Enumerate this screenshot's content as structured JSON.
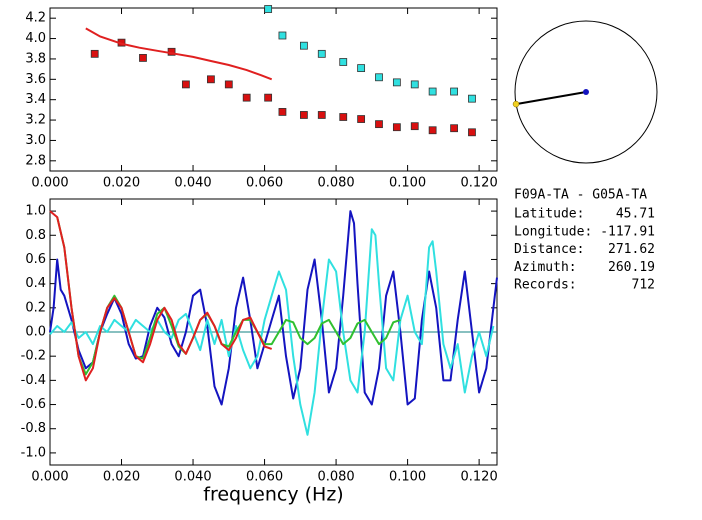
{
  "chart_data": [
    {
      "type": "scatter",
      "xlim": [
        0,
        0.125
      ],
      "ylim": [
        2.7,
        4.3
      ],
      "xticks": [
        {
          "value": 0,
          "label": "0.000"
        },
        {
          "value": 0.02,
          "label": "0.020"
        },
        {
          "value": 0.04,
          "label": "0.040"
        },
        {
          "value": 0.06,
          "label": "0.060"
        },
        {
          "value": 0.08,
          "label": "0.080"
        },
        {
          "value": 0.1,
          "label": "0.100"
        },
        {
          "value": 0.12,
          "label": "0.120"
        }
      ],
      "yticks": [
        {
          "value": 2.8,
          "label": "2.8"
        },
        {
          "value": 3.0,
          "label": "3.0"
        },
        {
          "value": 3.2,
          "label": "3.2"
        },
        {
          "value": 3.4,
          "label": "3.4"
        },
        {
          "value": 3.6,
          "label": "3.6"
        },
        {
          "value": 3.8,
          "label": "3.8"
        },
        {
          "value": 4.0,
          "label": "4.0"
        },
        {
          "value": 4.2,
          "label": "4.2"
        }
      ],
      "series": [
        {
          "style": "square",
          "color": "#d81010",
          "x": [
            0.0125,
            0.02,
            0.026,
            0.034,
            0.038,
            0.045,
            0.05,
            0.055,
            0.061,
            0.065,
            0.071,
            0.076,
            0.082,
            0.087,
            0.092,
            0.097,
            0.102,
            0.107,
            0.113,
            0.118
          ],
          "values": [
            3.85,
            3.96,
            3.81,
            3.87,
            3.55,
            3.6,
            3.55,
            3.42,
            3.42,
            3.28,
            3.25,
            3.25,
            3.23,
            3.21,
            3.16,
            3.13,
            3.14,
            3.1,
            3.12,
            3.08
          ]
        },
        {
          "style": "square",
          "color": "#30e0e0",
          "x": [
            0.061,
            0.065,
            0.071,
            0.076,
            0.082,
            0.087,
            0.092,
            0.097,
            0.102,
            0.107,
            0.113,
            0.118
          ],
          "values": [
            4.29,
            4.03,
            3.93,
            3.85,
            3.77,
            3.71,
            3.62,
            3.57,
            3.55,
            3.48,
            3.48,
            3.41
          ]
        },
        {
          "style": "line",
          "color": "#e02020",
          "x": [
            0.01,
            0.014,
            0.02,
            0.025,
            0.03,
            0.035,
            0.04,
            0.045,
            0.05,
            0.055,
            0.059,
            0.062
          ],
          "values": [
            4.1,
            4.02,
            3.95,
            3.91,
            3.88,
            3.85,
            3.82,
            3.78,
            3.74,
            3.69,
            3.64,
            3.6
          ]
        }
      ]
    },
    {
      "type": "line",
      "x_label": "frequency (Hz)",
      "xlim": [
        0,
        0.125
      ],
      "ylim": [
        -1.1,
        1.1
      ],
      "zero_line": true,
      "xticks": [
        {
          "value": 0,
          "label": "0.000"
        },
        {
          "value": 0.02,
          "label": "0.020"
        },
        {
          "value": 0.04,
          "label": "0.040"
        },
        {
          "value": 0.06,
          "label": "0.060"
        },
        {
          "value": 0.08,
          "label": "0.080"
        },
        {
          "value": 0.1,
          "label": "0.100"
        },
        {
          "value": 0.12,
          "label": "0.120"
        }
      ],
      "yticks": [
        {
          "value": -1.0,
          "label": "-1.0"
        },
        -0.8,
        -0.6,
        -0.4,
        -0.2,
        {
          "value": 0,
          "label": "0.0"
        },
        0.2,
        0.4,
        0.6,
        0.8,
        {
          "value": 1.0,
          "label": "1.0"
        }
      ],
      "series": [
        {
          "color": "#1414c0",
          "x": [
            0,
            0.001,
            0.002,
            0.003,
            0.004,
            0.006,
            0.008,
            0.01,
            0.012,
            0.014,
            0.016,
            0.018,
            0.02,
            0.022,
            0.024,
            0.026,
            0.028,
            0.03,
            0.032,
            0.034,
            0.036,
            0.038,
            0.04,
            0.042,
            0.044,
            0.046,
            0.048,
            0.05,
            0.052,
            0.054,
            0.056,
            0.058,
            0.06,
            0.062,
            0.064,
            0.066,
            0.068,
            0.07,
            0.072,
            0.074,
            0.076,
            0.078,
            0.08,
            0.082,
            0.084,
            0.085,
            0.086,
            0.088,
            0.09,
            0.092,
            0.094,
            0.096,
            0.098,
            0.1,
            0.102,
            0.104,
            0.106,
            0.108,
            0.11,
            0.112,
            0.114,
            0.116,
            0.118,
            0.12,
            0.122,
            0.124,
            0.125
          ],
          "values": [
            0.0,
            0.2,
            0.6,
            0.35,
            0.3,
            0.1,
            -0.15,
            -0.3,
            -0.25,
            0.0,
            0.15,
            0.28,
            0.15,
            -0.1,
            -0.22,
            -0.2,
            0.05,
            0.2,
            0.12,
            -0.1,
            -0.2,
            0.0,
            0.3,
            0.35,
            0.05,
            -0.45,
            -0.6,
            -0.3,
            0.2,
            0.45,
            0.1,
            -0.3,
            -0.1,
            0.1,
            0.3,
            -0.2,
            -0.55,
            -0.3,
            0.35,
            0.6,
            0.1,
            -0.5,
            -0.3,
            0.3,
            1.0,
            0.9,
            0.4,
            -0.5,
            -0.6,
            -0.3,
            0.3,
            0.5,
            0.0,
            -0.6,
            -0.55,
            0.1,
            0.5,
            0.2,
            -0.4,
            -0.4,
            0.1,
            0.5,
            0.0,
            -0.5,
            -0.3,
            0.2,
            0.45
          ]
        },
        {
          "color": "#30e0e0",
          "x": [
            0,
            0.002,
            0.004,
            0.006,
            0.008,
            0.01,
            0.012,
            0.014,
            0.016,
            0.018,
            0.02,
            0.022,
            0.024,
            0.026,
            0.028,
            0.03,
            0.032,
            0.034,
            0.036,
            0.038,
            0.04,
            0.042,
            0.044,
            0.046,
            0.048,
            0.05,
            0.052,
            0.054,
            0.056,
            0.058,
            0.06,
            0.062,
            0.064,
            0.066,
            0.068,
            0.07,
            0.072,
            0.074,
            0.076,
            0.078,
            0.08,
            0.082,
            0.084,
            0.086,
            0.088,
            0.09,
            0.091,
            0.092,
            0.094,
            0.096,
            0.098,
            0.1,
            0.102,
            0.104,
            0.106,
            0.107,
            0.108,
            0.11,
            0.112,
            0.114,
            0.116,
            0.118,
            0.12,
            0.122,
            0.124
          ],
          "values": [
            -0.02,
            0.05,
            0.0,
            0.08,
            -0.05,
            0.0,
            -0.1,
            0.05,
            0.0,
            0.1,
            0.05,
            0.0,
            0.1,
            0.05,
            0.0,
            0.1,
            0.0,
            -0.05,
            0.1,
            0.15,
            0.0,
            -0.15,
            0.1,
            -0.1,
            0.1,
            -0.2,
            0.05,
            -0.15,
            -0.3,
            -0.2,
            0.1,
            0.3,
            0.5,
            0.35,
            -0.2,
            -0.6,
            -0.85,
            -0.5,
            0.1,
            0.6,
            0.5,
            0.0,
            -0.4,
            -0.5,
            0.0,
            0.85,
            0.8,
            0.4,
            -0.3,
            -0.4,
            0.1,
            0.3,
            0.0,
            -0.1,
            0.7,
            0.75,
            0.5,
            -0.1,
            -0.3,
            -0.1,
            -0.5,
            -0.2,
            0.0,
            -0.2,
            0.05
          ]
        },
        {
          "color": "#30c030",
          "x": [
            0.002,
            0.004,
            0.006,
            0.008,
            0.01,
            0.012,
            0.014,
            0.016,
            0.018,
            0.02,
            0.022,
            0.024,
            0.026,
            0.028,
            0.03,
            0.032,
            0.034,
            0.036,
            0.038,
            0.04,
            0.042,
            0.044,
            0.046,
            0.048,
            0.05,
            0.052,
            0.054,
            0.056,
            0.058,
            0.06,
            0.062,
            0.064,
            0.066,
            0.068,
            0.07,
            0.072,
            0.074,
            0.076,
            0.078,
            0.08,
            0.082,
            0.084,
            0.086,
            0.088,
            0.09,
            0.092,
            0.094,
            0.096,
            0.098
          ],
          "values": [
            0.95,
            0.7,
            0.2,
            -0.2,
            -0.35,
            -0.25,
            0.0,
            0.2,
            0.3,
            0.2,
            0.0,
            -0.2,
            -0.22,
            -0.05,
            0.15,
            0.2,
            0.05,
            -0.12,
            -0.18,
            -0.05,
            0.1,
            0.15,
            0.05,
            -0.1,
            -0.12,
            0.0,
            0.1,
            0.1,
            0.0,
            -0.1,
            -0.1,
            0.0,
            0.1,
            0.08,
            -0.05,
            -0.1,
            -0.05,
            0.07,
            0.1,
            0.0,
            -0.1,
            -0.05,
            0.07,
            0.1,
            0.0,
            -0.1,
            -0.05,
            0.08,
            0.1
          ]
        },
        {
          "color": "#e02020",
          "x": [
            0,
            0.002,
            0.004,
            0.006,
            0.008,
            0.01,
            0.012,
            0.014,
            0.016,
            0.018,
            0.02,
            0.022,
            0.024,
            0.026,
            0.028,
            0.03,
            0.032,
            0.034,
            0.036,
            0.038,
            0.04,
            0.042,
            0.044,
            0.046,
            0.048,
            0.05,
            0.052,
            0.054,
            0.056,
            0.058,
            0.06,
            0.062
          ],
          "values": [
            1.0,
            0.95,
            0.7,
            0.2,
            -0.2,
            -0.4,
            -0.3,
            0.0,
            0.2,
            0.28,
            0.2,
            0.0,
            -0.2,
            -0.25,
            -0.1,
            0.1,
            0.2,
            0.1,
            -0.1,
            -0.18,
            -0.05,
            0.1,
            0.16,
            0.05,
            -0.1,
            -0.15,
            -0.05,
            0.1,
            0.12,
            0.0,
            -0.12,
            -0.14
          ]
        }
      ]
    }
  ],
  "info": {
    "title": "F09A-TA - G05A-TA",
    "fields": [
      {
        "label": "Latitude:",
        "value": 45.71
      },
      {
        "label": "Longitude:",
        "value": -117.91
      },
      {
        "label": "Distance:",
        "value": 271.62
      },
      {
        "label": "Azimuth:",
        "value": 260.19
      },
      {
        "label": "Records:",
        "value": 712
      }
    ]
  }
}
